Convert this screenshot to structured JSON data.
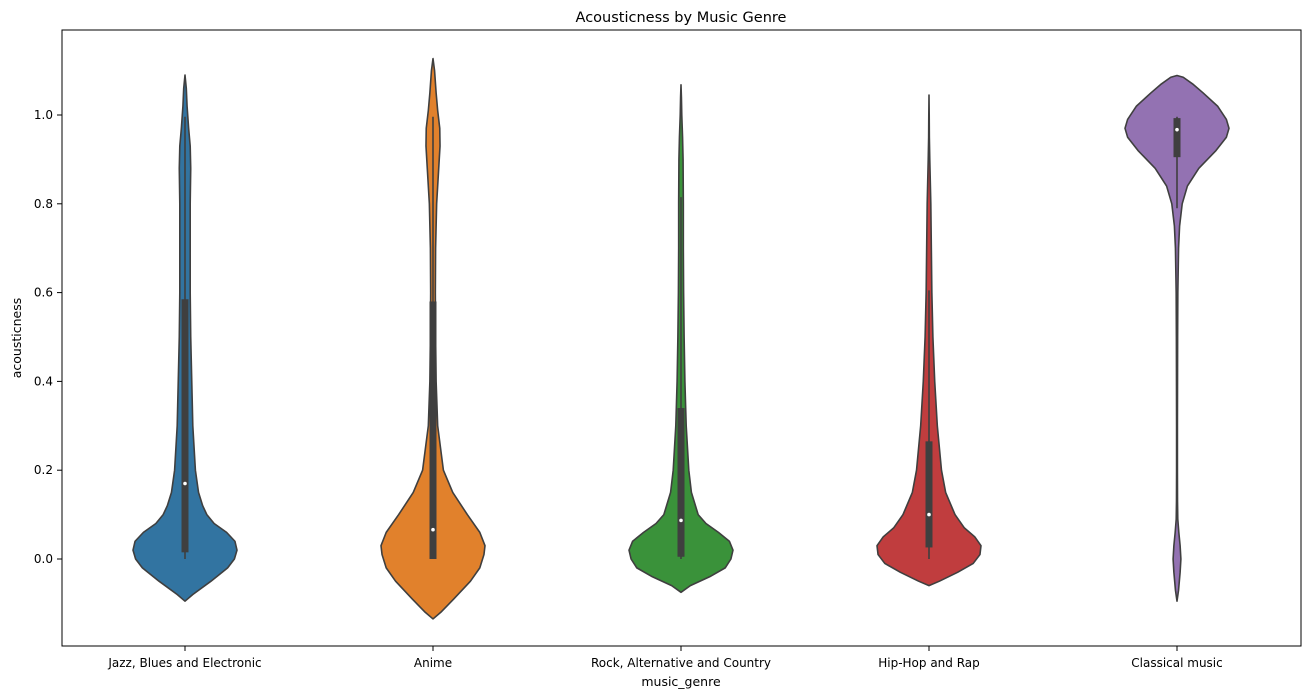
{
  "chart_data": {
    "type": "violin",
    "title": "Acousticness by Music Genre",
    "xlabel": "music_genre",
    "ylabel": "acousticness",
    "ylim": [
      -0.2,
      1.18
    ],
    "yticks": [
      0.0,
      0.2,
      0.4,
      0.6,
      0.8,
      1.0
    ],
    "ytick_labels": [
      "0.0",
      "0.2",
      "0.4",
      "0.6",
      "0.8",
      "1.0"
    ],
    "grid": false,
    "categories": [
      "Jazz, Blues and Electronic",
      "Anime",
      "Rock, Alternative and Country",
      "Hip-Hop and Rap",
      "Classical music"
    ],
    "series": [
      {
        "category": "Jazz, Blues and Electronic",
        "color": "#3274a1",
        "min": 0.0,
        "q1": 0.015,
        "median": 0.17,
        "q3": 0.585,
        "max": 0.996,
        "density": [
          [
            -0.095,
            0.0
          ],
          [
            -0.08,
            0.15
          ],
          [
            -0.05,
            0.5
          ],
          [
            -0.02,
            0.82
          ],
          [
            0.0,
            0.95
          ],
          [
            0.02,
            1.0
          ],
          [
            0.04,
            0.96
          ],
          [
            0.06,
            0.8
          ],
          [
            0.08,
            0.56
          ],
          [
            0.1,
            0.42
          ],
          [
            0.12,
            0.34
          ],
          [
            0.15,
            0.26
          ],
          [
            0.2,
            0.2
          ],
          [
            0.3,
            0.15
          ],
          [
            0.4,
            0.13
          ],
          [
            0.5,
            0.11
          ],
          [
            0.6,
            0.1
          ],
          [
            0.7,
            0.1
          ],
          [
            0.8,
            0.1
          ],
          [
            0.88,
            0.11
          ],
          [
            0.93,
            0.1
          ],
          [
            0.97,
            0.07
          ],
          [
            1.02,
            0.04
          ],
          [
            1.06,
            0.025
          ],
          [
            1.09,
            0.0
          ]
        ]
      },
      {
        "category": "Anime",
        "color": "#e1812c",
        "min": 0.0,
        "q1": 0.0,
        "median": 0.066,
        "q3": 0.58,
        "max": 0.996,
        "density": [
          [
            -0.135,
            0.0
          ],
          [
            -0.12,
            0.15
          ],
          [
            -0.09,
            0.4
          ],
          [
            -0.05,
            0.72
          ],
          [
            -0.02,
            0.9
          ],
          [
            0.01,
            0.98
          ],
          [
            0.03,
            1.0
          ],
          [
            0.06,
            0.9
          ],
          [
            0.1,
            0.66
          ],
          [
            0.15,
            0.38
          ],
          [
            0.2,
            0.2
          ],
          [
            0.3,
            0.09
          ],
          [
            0.4,
            0.06
          ],
          [
            0.5,
            0.05
          ],
          [
            0.6,
            0.045
          ],
          [
            0.7,
            0.05
          ],
          [
            0.8,
            0.07
          ],
          [
            0.88,
            0.11
          ],
          [
            0.93,
            0.135
          ],
          [
            0.97,
            0.13
          ],
          [
            1.01,
            0.09
          ],
          [
            1.05,
            0.06
          ],
          [
            1.1,
            0.03
          ],
          [
            1.127,
            0.0
          ]
        ]
      },
      {
        "category": "Rock, Alternative and Country",
        "color": "#3a923a",
        "min": 0.0,
        "q1": 0.005,
        "median": 0.087,
        "q3": 0.34,
        "max": 0.815,
        "density": [
          [
            -0.075,
            0.0
          ],
          [
            -0.06,
            0.18
          ],
          [
            -0.04,
            0.55
          ],
          [
            -0.02,
            0.85
          ],
          [
            0.0,
            0.96
          ],
          [
            0.02,
            1.0
          ],
          [
            0.04,
            0.93
          ],
          [
            0.06,
            0.72
          ],
          [
            0.08,
            0.48
          ],
          [
            0.1,
            0.33
          ],
          [
            0.15,
            0.2
          ],
          [
            0.2,
            0.15
          ],
          [
            0.3,
            0.1
          ],
          [
            0.4,
            0.075
          ],
          [
            0.5,
            0.06
          ],
          [
            0.6,
            0.05
          ],
          [
            0.7,
            0.045
          ],
          [
            0.8,
            0.045
          ],
          [
            0.9,
            0.04
          ],
          [
            0.95,
            0.03
          ],
          [
            1.0,
            0.015
          ],
          [
            1.04,
            0.008
          ],
          [
            1.068,
            0.0
          ]
        ]
      },
      {
        "category": "Hip-Hop and Rap",
        "color": "#c03d3e",
        "min": 0.0,
        "q1": 0.026,
        "median": 0.1,
        "q3": 0.265,
        "max": 0.605,
        "density": [
          [
            -0.06,
            0.0
          ],
          [
            -0.05,
            0.2
          ],
          [
            -0.03,
            0.55
          ],
          [
            -0.01,
            0.85
          ],
          [
            0.01,
            0.98
          ],
          [
            0.03,
            1.0
          ],
          [
            0.05,
            0.88
          ],
          [
            0.07,
            0.68
          ],
          [
            0.1,
            0.5
          ],
          [
            0.15,
            0.32
          ],
          [
            0.2,
            0.24
          ],
          [
            0.3,
            0.16
          ],
          [
            0.4,
            0.11
          ],
          [
            0.5,
            0.075
          ],
          [
            0.6,
            0.055
          ],
          [
            0.7,
            0.045
          ],
          [
            0.8,
            0.035
          ],
          [
            0.9,
            0.015
          ],
          [
            0.95,
            0.007
          ],
          [
            1.0,
            0.004
          ],
          [
            1.045,
            0.0
          ]
        ]
      },
      {
        "category": "Classical music",
        "color": "#9372b2",
        "min": 0.79,
        "q1": 0.905,
        "median": 0.967,
        "q3": 0.993,
        "max": 0.996,
        "density": [
          [
            -0.095,
            0.0
          ],
          [
            -0.07,
            0.03
          ],
          [
            -0.03,
            0.06
          ],
          [
            0.0,
            0.075
          ],
          [
            0.03,
            0.06
          ],
          [
            0.06,
            0.035
          ],
          [
            0.09,
            0.015
          ],
          [
            0.13,
            0.01
          ],
          [
            0.2,
            0.008
          ],
          [
            0.3,
            0.008
          ],
          [
            0.4,
            0.01
          ],
          [
            0.5,
            0.012
          ],
          [
            0.6,
            0.016
          ],
          [
            0.7,
            0.03
          ],
          [
            0.75,
            0.05
          ],
          [
            0.8,
            0.1
          ],
          [
            0.84,
            0.2
          ],
          [
            0.88,
            0.42
          ],
          [
            0.92,
            0.75
          ],
          [
            0.95,
            0.95
          ],
          [
            0.97,
            1.0
          ],
          [
            0.99,
            0.95
          ],
          [
            1.02,
            0.78
          ],
          [
            1.05,
            0.5
          ],
          [
            1.07,
            0.3
          ],
          [
            1.085,
            0.12
          ],
          [
            1.089,
            0.0
          ]
        ]
      }
    ]
  }
}
